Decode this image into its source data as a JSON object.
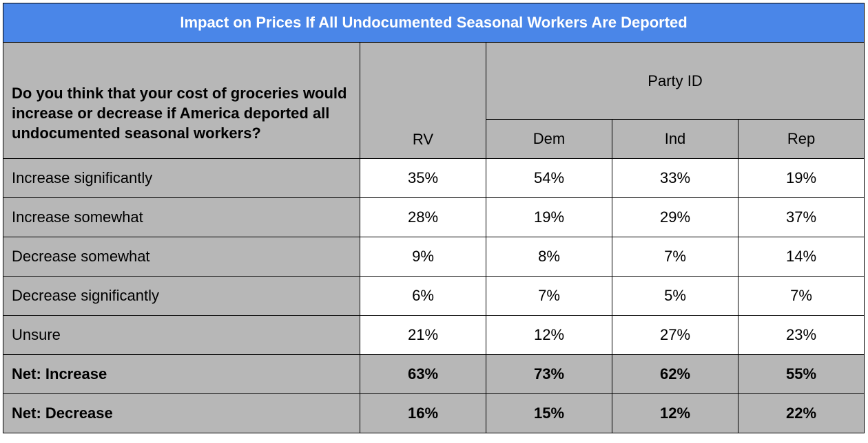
{
  "chart_data": {
    "type": "table",
    "title": "Impact on Prices If All Undocumented Seasonal Workers Are Deported",
    "question": "Do you think that your cost of groceries would increase or decrease if America deported all undocumented seasonal workers?",
    "group_header": "Party ID",
    "columns": [
      "RV",
      "Dem",
      "Ind",
      "Rep"
    ],
    "rows": [
      {
        "label": "Increase significantly",
        "values": [
          "35%",
          "54%",
          "33%",
          "19%"
        ]
      },
      {
        "label": "Increase somewhat",
        "values": [
          "28%",
          "19%",
          "29%",
          "37%"
        ]
      },
      {
        "label": "Decrease somewhat",
        "values": [
          "9%",
          "8%",
          "7%",
          "14%"
        ]
      },
      {
        "label": "Decrease significantly",
        "values": [
          "6%",
          "7%",
          "5%",
          "7%"
        ]
      },
      {
        "label": "Unsure",
        "values": [
          "21%",
          "12%",
          "27%",
          "23%"
        ]
      },
      {
        "label": "Net: Increase",
        "values": [
          "63%",
          "73%",
          "62%",
          "55%"
        ],
        "net": true
      },
      {
        "label": "Net: Decrease",
        "values": [
          "16%",
          "15%",
          "12%",
          "22%"
        ],
        "net": true
      }
    ],
    "colors": {
      "title_bg": "#4a86e8",
      "header_bg": "#b7b7b7",
      "cell_bg": "#ffffff"
    }
  }
}
